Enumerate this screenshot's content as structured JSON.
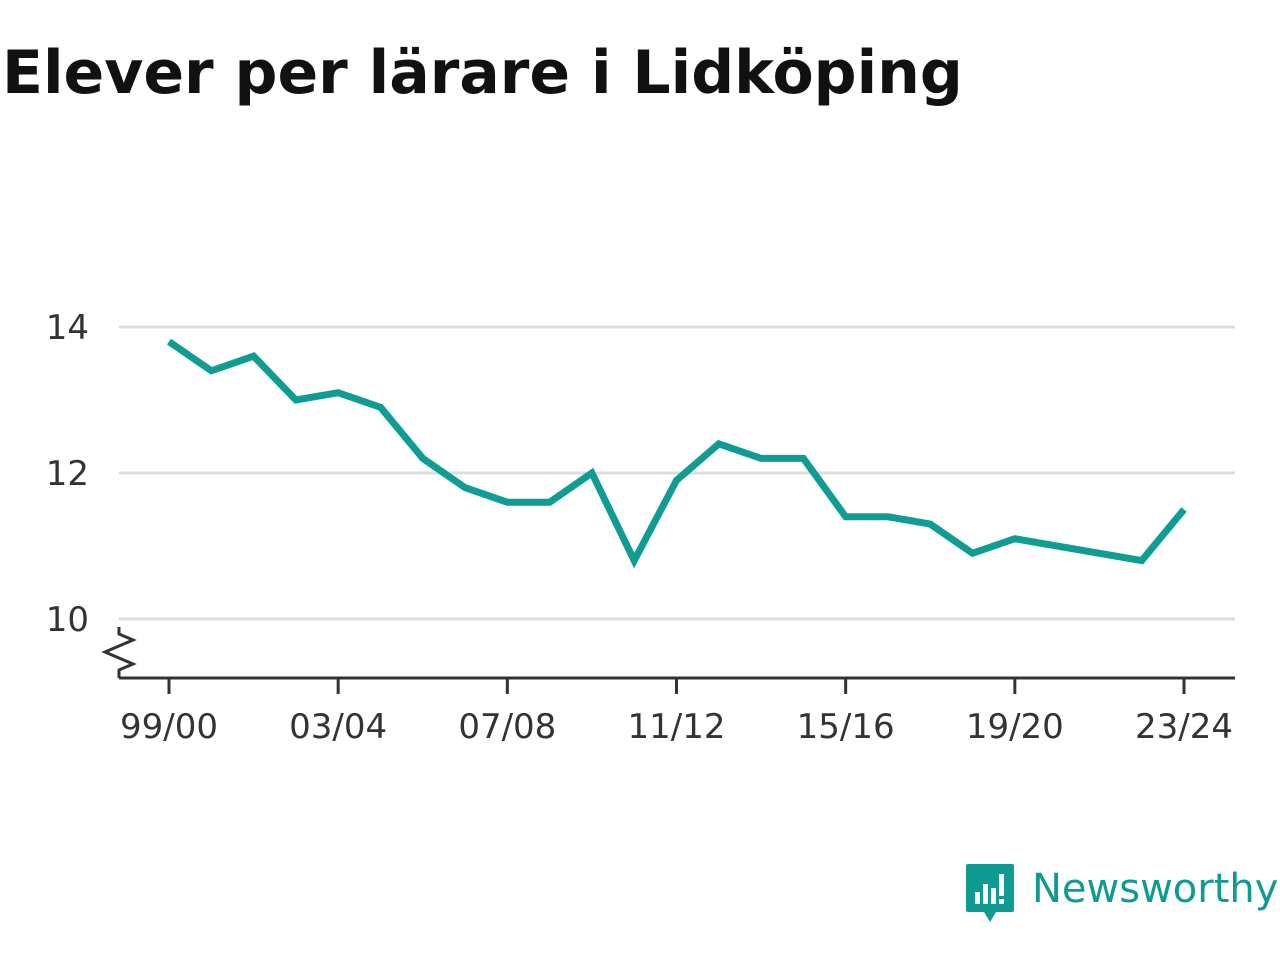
{
  "title": "Elever per lärare i Lidköping",
  "brand": {
    "name": "Newsworthy",
    "icon": "bar-chart-speech-bubble-icon"
  },
  "colors": {
    "line": "#0f9d93",
    "grid": "#dddddd",
    "axis": "#333333",
    "brand": "#0f9a92"
  },
  "chart_data": {
    "type": "line",
    "title": "Elever per lärare i Lidköping",
    "xlabel": "",
    "ylabel": "",
    "ylim": [
      9.2,
      14.8
    ],
    "yticks": [
      10,
      12,
      14
    ],
    "y_axis_break": true,
    "grid": true,
    "x_tick_labels": [
      "99/00",
      "03/04",
      "07/08",
      "11/12",
      "15/16",
      "19/20",
      "23/24"
    ],
    "x": [
      "99/00",
      "00/01",
      "01/02",
      "02/03",
      "03/04",
      "04/05",
      "05/06",
      "06/07",
      "07/08",
      "08/09",
      "09/10",
      "10/11",
      "11/12",
      "12/13",
      "13/14",
      "14/15",
      "15/16",
      "16/17",
      "17/18",
      "18/19",
      "19/20",
      "20/21",
      "21/22",
      "22/23",
      "23/24"
    ],
    "values": [
      13.8,
      13.4,
      13.6,
      13.0,
      13.1,
      12.9,
      12.2,
      11.8,
      11.6,
      11.6,
      12.0,
      10.8,
      11.9,
      12.4,
      12.2,
      12.2,
      11.4,
      11.4,
      11.3,
      10.9,
      11.1,
      null,
      null,
      10.8,
      11.5
    ]
  }
}
